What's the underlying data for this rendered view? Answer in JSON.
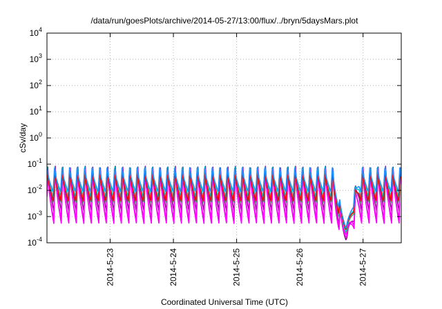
{
  "chart_data": {
    "type": "line",
    "title": "/data/run/goesPlots/archive/2014-05-27/13:00/flux/../bryn/5daysMars.plot",
    "xlabel": "Coordinated Universal Time (UTC)",
    "ylabel": "cSv/day",
    "y_scale": "log",
    "ylim": [
      0.0001,
      10000
    ],
    "xlim": [
      "2014-05-22 00:00",
      "2014-05-27 14:30"
    ],
    "grid": true,
    "legend": "none",
    "y_ticks": [
      {
        "value": 0.0001,
        "base": "10",
        "exp": "-4"
      },
      {
        "value": 0.001,
        "base": "10",
        "exp": "-3"
      },
      {
        "value": 0.01,
        "base": "10",
        "exp": "-2"
      },
      {
        "value": 0.1,
        "base": "10",
        "exp": "-1"
      },
      {
        "value": 1,
        "base": "10",
        "exp": "0"
      },
      {
        "value": 10,
        "base": "10",
        "exp": "1"
      },
      {
        "value": 100,
        "base": "10",
        "exp": "2"
      },
      {
        "value": 1000,
        "base": "10",
        "exp": "3"
      },
      {
        "value": 10000,
        "base": "10",
        "exp": "4"
      }
    ],
    "x_ticks": [
      {
        "value": "2014-05-23 00:00",
        "label": "2014-5-23"
      },
      {
        "value": "2014-05-24 00:00",
        "label": "2014-5-24"
      },
      {
        "value": "2014-05-25 00:00",
        "label": "2014-5-25"
      },
      {
        "value": "2014-05-26 00:00",
        "label": "2014-5-26"
      },
      {
        "value": "2014-05-27 00:00",
        "label": "2014-5-27"
      }
    ],
    "sawtooth": {
      "period_hours": 2.85,
      "dip_time": "2014-05-26 17:30",
      "dip_min": 0.00013
    },
    "series": [
      {
        "color": "#8b008b",
        "peak": 0.085,
        "trough": 0.0016
      },
      {
        "color": "#ff00ff",
        "peak": 0.07,
        "trough": 0.00055
      },
      {
        "color": "#ff00ff",
        "peak": 0.06,
        "trough": 0.0008
      },
      {
        "color": "#3cb371",
        "peak": 0.055,
        "trough": 0.0035
      },
      {
        "color": "#00ced1",
        "peak": 0.08,
        "trough": 0.0055
      },
      {
        "color": "#ff0000",
        "peak": 0.06,
        "trough": 0.004
      },
      {
        "color": "#1e90ff",
        "peak": 0.075,
        "trough": 0.009
      }
    ]
  }
}
